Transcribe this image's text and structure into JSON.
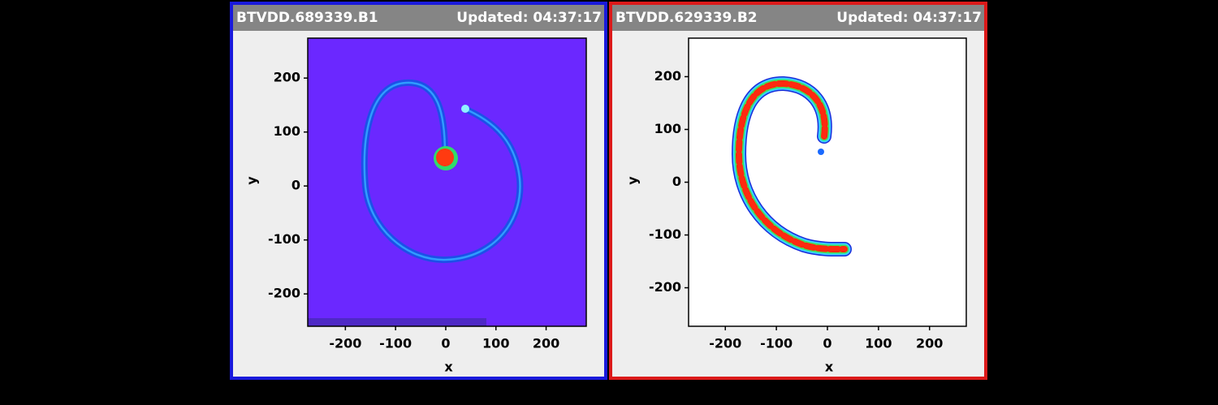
{
  "chart_data": [
    {
      "type": "heatmap",
      "title": "BTVDD.689339.B1",
      "subtitle": "Updated: 04:37:17",
      "xlabel": "x",
      "ylabel": "y",
      "xlim": [
        -275,
        280
      ],
      "ylim": [
        -260,
        274
      ],
      "xticks": [
        -200,
        -100,
        0,
        100,
        200
      ],
      "yticks": [
        -200,
        -100,
        0,
        100,
        200
      ]
    },
    {
      "type": "heatmap",
      "title": "BTVDD.629339.B2",
      "subtitle": "Updated: 04:37:17",
      "xlabel": "x",
      "ylabel": "y",
      "xlim": [
        -272,
        272
      ],
      "ylim": [
        -273,
        273
      ],
      "xticks": [
        -200,
        -100,
        0,
        100,
        200
      ],
      "yticks": [
        -200,
        -100,
        0,
        100,
        200
      ]
    }
  ]
}
